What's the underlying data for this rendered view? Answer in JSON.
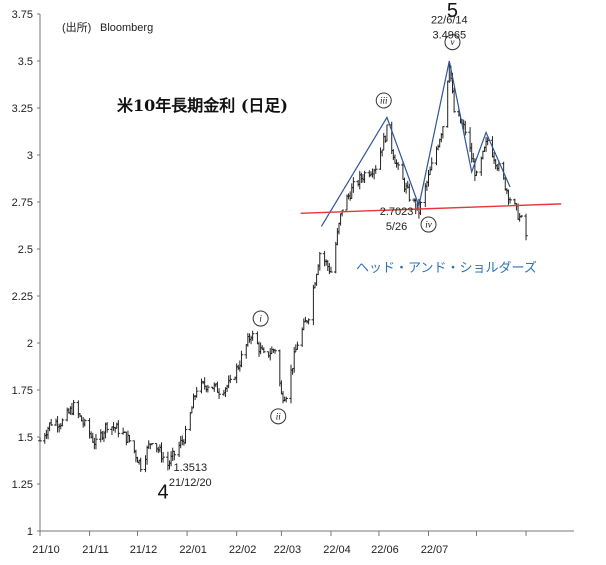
{
  "chart_data": {
    "type": "line",
    "title": "米10年長期金利 (日足)",
    "source": "(出所)",
    "source_name": "Bloomberg",
    "ylim": [
      1,
      3.75
    ],
    "y_ticks": [
      1,
      1.25,
      1.5,
      1.75,
      2,
      2.25,
      2.5,
      2.75,
      3,
      3.25,
      3.5,
      3.75
    ],
    "x_ticks": [
      "21/10",
      "21/11",
      "21/12",
      "22/01",
      "22/02",
      "22/03",
      "22/04",
      "22/06",
      "22/07"
    ],
    "grid": false,
    "series": [
      {
        "values": [
          [
            "2021-10-01",
            1.48
          ],
          [
            "2021-10-08",
            1.58
          ],
          [
            "2021-10-15",
            1.58
          ],
          [
            "2021-10-22",
            1.66
          ],
          [
            "2021-10-29",
            1.56
          ],
          [
            "2021-11-05",
            1.46
          ],
          [
            "2021-11-12",
            1.57
          ],
          [
            "2021-11-19",
            1.54
          ],
          [
            "2021-11-26",
            1.48
          ],
          [
            "2021-12-03",
            1.35
          ],
          [
            "2021-12-10",
            1.49
          ],
          [
            "2021-12-20",
            1.3513
          ],
          [
            "2021-12-31",
            1.51
          ],
          [
            "2022-01-07",
            1.76
          ],
          [
            "2022-01-14",
            1.78
          ],
          [
            "2022-01-21",
            1.75
          ],
          [
            "2022-01-28",
            1.78
          ],
          [
            "2022-02-04",
            1.92
          ],
          [
            "2022-02-10",
            2.05
          ],
          [
            "2022-02-18",
            1.93
          ],
          [
            "2022-02-25",
            1.97
          ],
          [
            "2022-03-01",
            1.72
          ],
          [
            "2022-03-04",
            1.73
          ],
          [
            "2022-03-11",
            2.0
          ],
          [
            "2022-03-18",
            2.15
          ],
          [
            "2022-03-25",
            2.48
          ],
          [
            "2022-04-01",
            2.38
          ],
          [
            "2022-04-08",
            2.72
          ],
          [
            "2022-04-15",
            2.83
          ],
          [
            "2022-04-22",
            2.9
          ],
          [
            "2022-04-29",
            2.94
          ],
          [
            "2022-05-06",
            3.13
          ],
          [
            "2022-05-13",
            2.92
          ],
          [
            "2022-05-20",
            2.78
          ],
          [
            "2022-05-26",
            2.7023
          ],
          [
            "2022-06-03",
            2.94
          ],
          [
            "2022-06-10",
            3.16
          ],
          [
            "2022-06-14",
            3.4965
          ],
          [
            "2022-06-17",
            3.23
          ],
          [
            "2022-06-24",
            3.13
          ],
          [
            "2022-07-01",
            2.88
          ],
          [
            "2022-07-08",
            3.08
          ],
          [
            "2022-07-15",
            2.93
          ],
          [
            "2022-07-22",
            2.77
          ],
          [
            "2022-07-29",
            2.65
          ],
          [
            "2022-08-01",
            2.57
          ]
        ]
      }
    ],
    "wave_labels": [
      "i",
      "ii",
      "iii",
      "iv",
      "v"
    ],
    "wave_numbers": [
      "4",
      "5"
    ],
    "annotations": [
      {
        "lines": [
          "1.3513",
          "21/12/20"
        ],
        "date": "2021-12-20",
        "value": 1.3513
      },
      {
        "lines": [
          "22/6/14",
          "3.4965"
        ],
        "date": "2022-06-14",
        "value": 3.4965
      },
      {
        "lines": [
          "2.7023",
          "5/26"
        ],
        "date": "2022-05-26",
        "value": 2.7023
      }
    ],
    "pattern_label": "ヘッド・アンド・ショルダーズ",
    "neckline": {
      "from": [
        "2022-03-13",
        2.69
      ],
      "to": [
        "2022-08-23",
        2.74
      ],
      "color": "#E8353A"
    },
    "wave_line_color": "#2F5597",
    "bar_color": "#222222"
  }
}
